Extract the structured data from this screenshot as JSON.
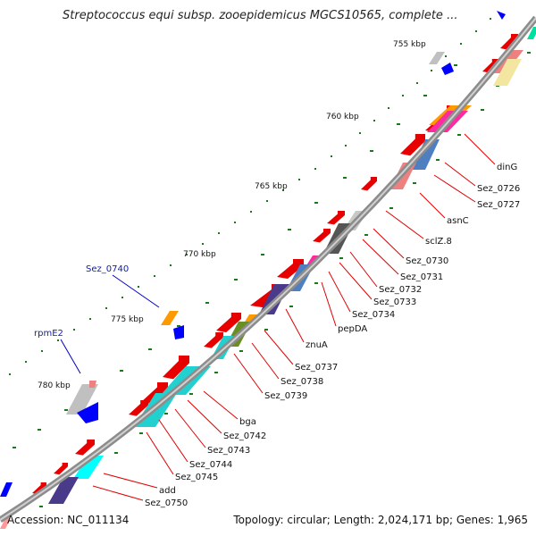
{
  "header": {
    "title": "Streptococcus equi subsp. zooepidemicus MGCS10565, complete ..."
  },
  "footer": {
    "accession": "Accession: NC_011134",
    "topology": "Topology: circular; Length: 2,024,171 bp; Genes: 1,965"
  },
  "colors": {
    "backbone": "#8c8c8c",
    "tick": "#1a7a1a",
    "label_line_red": "#e00000",
    "label_line_blue": "#0000c0"
  },
  "scale_labels": [
    "755 kbp",
    "760 kbp",
    "765 kbp",
    "770 kbp",
    "775 kbp",
    "780 kbp"
  ],
  "gene_labels_right": [
    "dinG",
    "Sez_0726",
    "Sez_0727",
    "asnC",
    "sclZ.8",
    "Sez_0730",
    "Sez_0731",
    "Sez_0732",
    "Sez_0733",
    "Sez_0734",
    "pepDA",
    "znuA",
    "Sez_0737",
    "Sez_0738",
    "Sez_0739",
    "bga",
    "Sez_0742",
    "Sez_0743",
    "Sez_0744",
    "Sez_0745",
    "add",
    "Sez_0750"
  ],
  "gene_labels_left": [
    "Sez_0740",
    "rpmE2"
  ]
}
